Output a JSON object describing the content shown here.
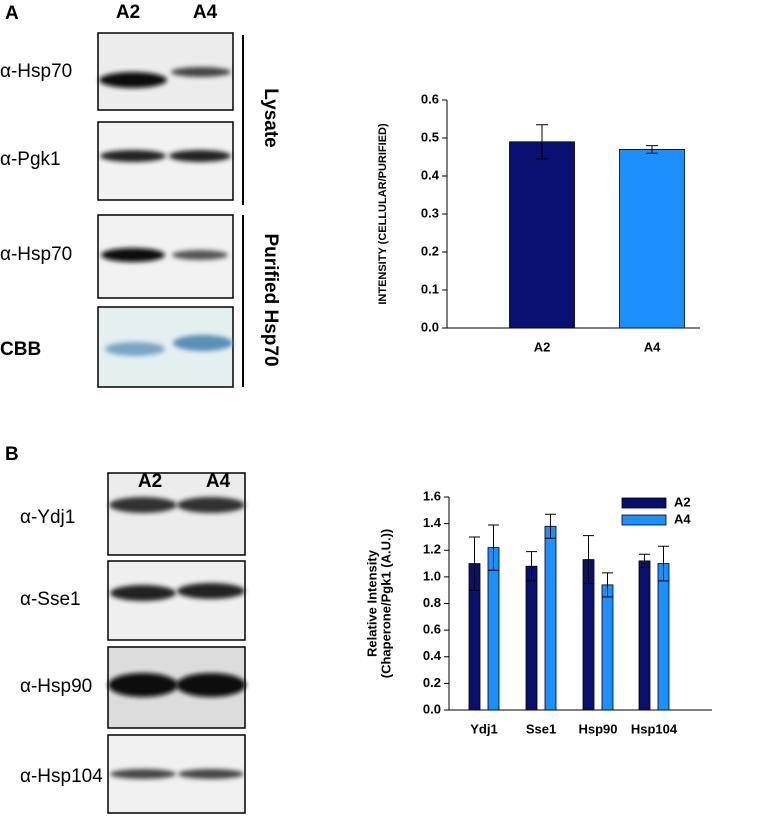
{
  "panels": [
    {
      "label": "A",
      "lanes": [
        "A2",
        "A4"
      ],
      "blots": [
        "α-Hsp70",
        "α-Pgk1",
        "α-Hsp70",
        "CBB"
      ],
      "groups": [
        "Lysate",
        "Purified Hsp70"
      ]
    },
    {
      "label": "B",
      "lanes": [
        "A2",
        "A4"
      ],
      "blots": [
        "α-Ydj1",
        "α-Sse1",
        "α-Hsp90",
        "α-Hsp104"
      ]
    }
  ],
  "chart_data": [
    {
      "type": "bar",
      "ylabel": [
        "INTENSITY (CELLULAR/PURIFIED)"
      ],
      "categories": [
        "A2",
        "A4"
      ],
      "values": [
        0.49,
        0.47
      ],
      "errors": [
        0.045,
        0.01
      ],
      "colors": [
        "#0a1070",
        "#1e8fff"
      ],
      "ylim": [
        0,
        0.6
      ],
      "yticks": [
        {
          "value": 0,
          "label": "0.0"
        },
        0.1,
        0.2,
        0.3,
        0.4,
        0.5,
        0.6
      ]
    },
    {
      "type": "grouped-bar",
      "ylabel": [
        "Relative Intensity",
        "(Chaperone/Pgk1 (A.U.))"
      ],
      "categories": [
        "Ydj1",
        "Sse1",
        "Hsp90",
        "Hsp104"
      ],
      "series": [
        {
          "name": "A2",
          "color": "#0a1070",
          "values": [
            1.1,
            1.08,
            1.13,
            1.12
          ],
          "errors": [
            0.2,
            0.11,
            0.18,
            0.05
          ]
        },
        {
          "name": "A4",
          "color": "#1e8fff",
          "values": [
            1.22,
            1.38,
            0.94,
            1.1
          ],
          "errors": [
            0.17,
            0.09,
            0.09,
            0.13
          ]
        }
      ],
      "ylim": [
        0,
        1.6
      ],
      "yticks": [
        {
          "value": 0,
          "label": "0.0"
        },
        0.2,
        0.4,
        0.6,
        0.8,
        {
          "value": 1,
          "label": "1.0"
        },
        1.2,
        1.4,
        1.6
      ],
      "legend": "top-right"
    }
  ]
}
